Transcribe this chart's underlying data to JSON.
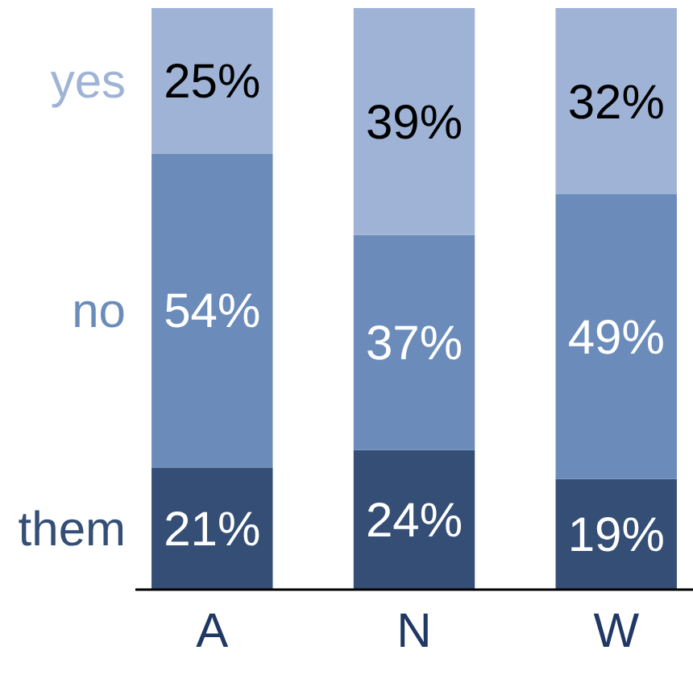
{
  "chart_data": {
    "type": "bar",
    "stacked": true,
    "categories": [
      "A",
      "N",
      "W"
    ],
    "ylim": [
      0,
      100
    ],
    "tick_labels": "x",
    "series": [
      {
        "name": "them",
        "color": "#344e75",
        "values": [
          21,
          24,
          19
        ],
        "value_labels": [
          "21%",
          "24%",
          "19%"
        ]
      },
      {
        "name": "no",
        "color": "#6b8cba",
        "values": [
          54,
          37,
          49
        ],
        "value_labels": [
          "54%",
          "37%",
          "49%"
        ]
      },
      {
        "name": "yes",
        "color": "#9fb3d6",
        "values": [
          25,
          39,
          32
        ],
        "value_labels": [
          "25%",
          "39%",
          "32%"
        ]
      }
    ]
  }
}
